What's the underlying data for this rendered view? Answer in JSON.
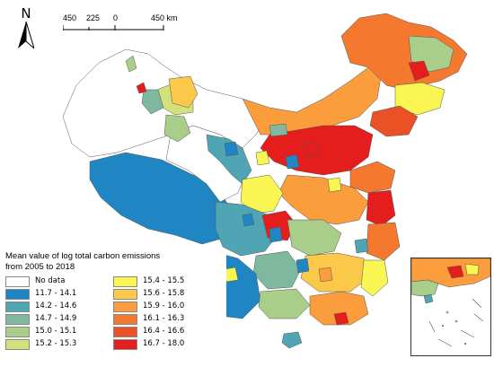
{
  "north_arrow": {
    "label": "N",
    "icon": "north-arrow-icon"
  },
  "scale_bar": {
    "ticks": [
      "450",
      "225",
      "0",
      "450 km"
    ]
  },
  "legend": {
    "title_line1": "Mean value of log total carbon emissions",
    "title_line2": "from 2005 to 2018",
    "classes": [
      {
        "label": "No data",
        "color": "#ffffff"
      },
      {
        "label": "11.7 - 14.1",
        "color": "#1f86c3"
      },
      {
        "label": "14.2 - 14.6",
        "color": "#4fa5b3"
      },
      {
        "label": "14.7 - 14.9",
        "color": "#7eb99f"
      },
      {
        "label": "15.0 - 15.1",
        "color": "#a8ce8a"
      },
      {
        "label": "15.2 - 15.3",
        "color": "#d2e27a"
      },
      {
        "label": "15.4 - 15.5",
        "color": "#f9f552"
      },
      {
        "label": "15.6 - 15.8",
        "color": "#fbc94a"
      },
      {
        "label": "15.9 - 16.0",
        "color": "#fb9d3c"
      },
      {
        "label": "16.1 - 16.3",
        "color": "#f4792f"
      },
      {
        "label": "16.4 - 16.6",
        "color": "#ea5124"
      },
      {
        "label": "16.7 - 18.0",
        "color": "#e51d1c"
      }
    ]
  }
}
